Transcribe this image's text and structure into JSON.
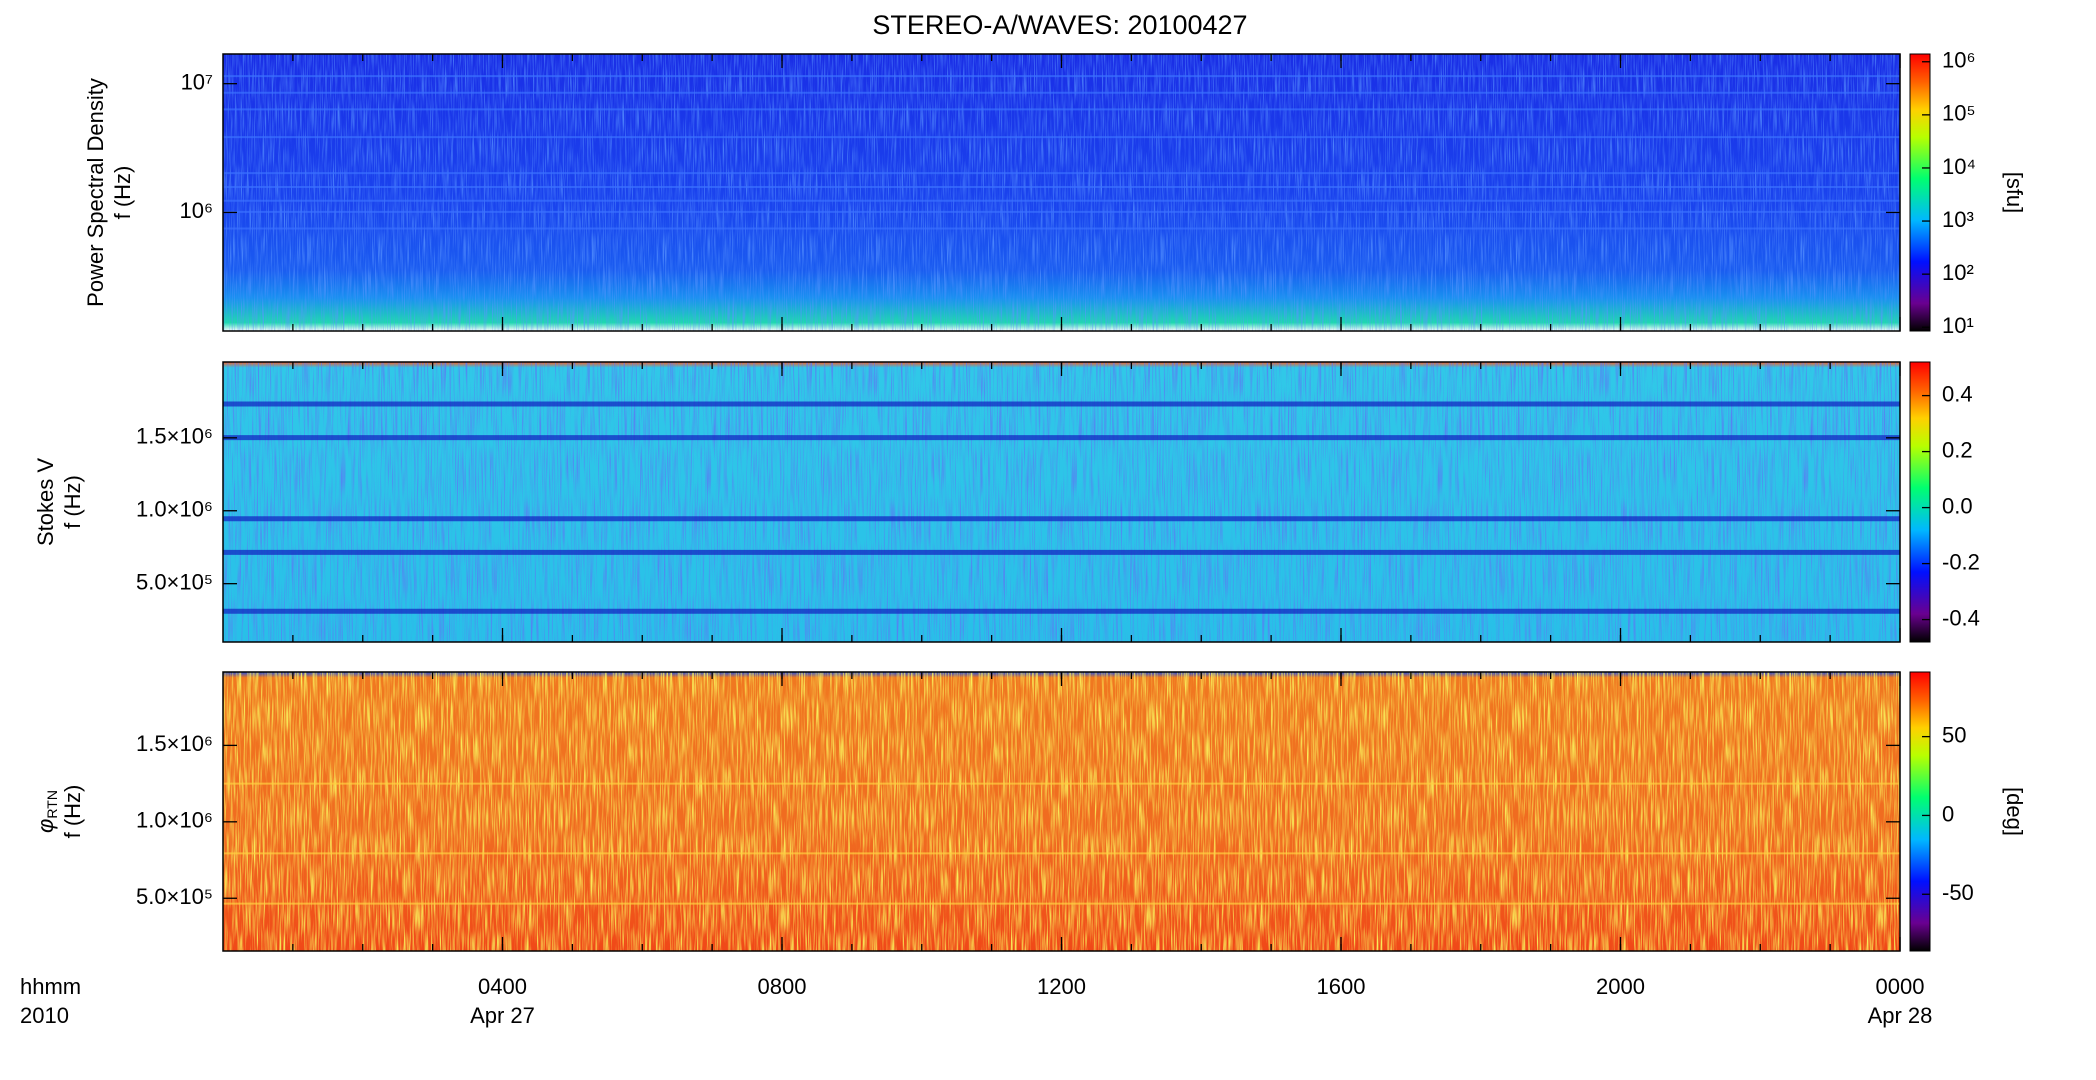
{
  "chart_data": [
    {
      "type": "heatmap",
      "title": "STEREO-A/WAVES: 20100427",
      "ylabel": "Power Spectral Density",
      "ylabel2": "f (Hz)",
      "ylog": true,
      "ylim": [
        120000,
        17000000
      ],
      "yticks": [
        {
          "value": 1000000,
          "label": "10⁶"
        },
        {
          "value": 10000000,
          "label": "10⁷"
        }
      ],
      "clog": true,
      "clim": [
        8.5,
        1400000
      ],
      "cticks": [
        {
          "value": 10,
          "label": "10¹"
        },
        {
          "value": 100,
          "label": "10²"
        },
        {
          "value": 1000,
          "label": "10³"
        },
        {
          "value": 10000,
          "label": "10⁴"
        },
        {
          "value": 100000,
          "label": "10⁵"
        },
        {
          "value": 1000000,
          "label": "10⁶"
        }
      ],
      "clabel": "[sfu]"
    },
    {
      "type": "heatmap",
      "ylabel": "Stokes V",
      "ylabel2": "f (Hz)",
      "ylog": false,
      "ylim": [
        100000,
        2020000
      ],
      "yticks": [
        {
          "value": 500000,
          "label": "5.0×10⁵"
        },
        {
          "value": 1000000,
          "label": "1.0×10⁶"
        },
        {
          "value": 1500000,
          "label": "1.5×10⁶"
        }
      ],
      "clog": false,
      "clim": [
        -0.48,
        0.52
      ],
      "cticks": [
        -0.4,
        -0.2,
        {
          "value": 0,
          "label": "0.0"
        },
        0.2,
        0.4
      ]
    },
    {
      "type": "heatmap",
      "ylabel": "φ",
      "ylabel_sub": "RTN",
      "ylabel2": "f (Hz)",
      "ylog": false,
      "ylim": [
        155000,
        1980000
      ],
      "yticks": [
        {
          "value": 500000,
          "label": "5.0×10⁵"
        },
        {
          "value": 1000000,
          "label": "1.0×10⁶"
        },
        {
          "value": 1500000,
          "label": "1.5×10⁶"
        }
      ],
      "clog": false,
      "clim": [
        -86,
        91
      ],
      "cticks": [
        -50,
        0,
        50
      ],
      "clabel": "[deg]",
      "xlabel": "hhmm",
      "xlabel2": "2010",
      "xlim": [
        0,
        24
      ],
      "xminor_step": 1,
      "xticks": [
        {
          "value": 4,
          "label": "0400"
        },
        {
          "value": 8,
          "label": "0800"
        },
        {
          "value": 12,
          "label": "1200"
        },
        {
          "value": 16,
          "label": "1600"
        },
        {
          "value": 20,
          "label": "2000"
        },
        {
          "value": 24,
          "label": "0000"
        }
      ],
      "date_labels": [
        {
          "value": 4,
          "label": "Apr 27"
        },
        {
          "value": 24,
          "label": "Apr 28"
        }
      ]
    }
  ]
}
